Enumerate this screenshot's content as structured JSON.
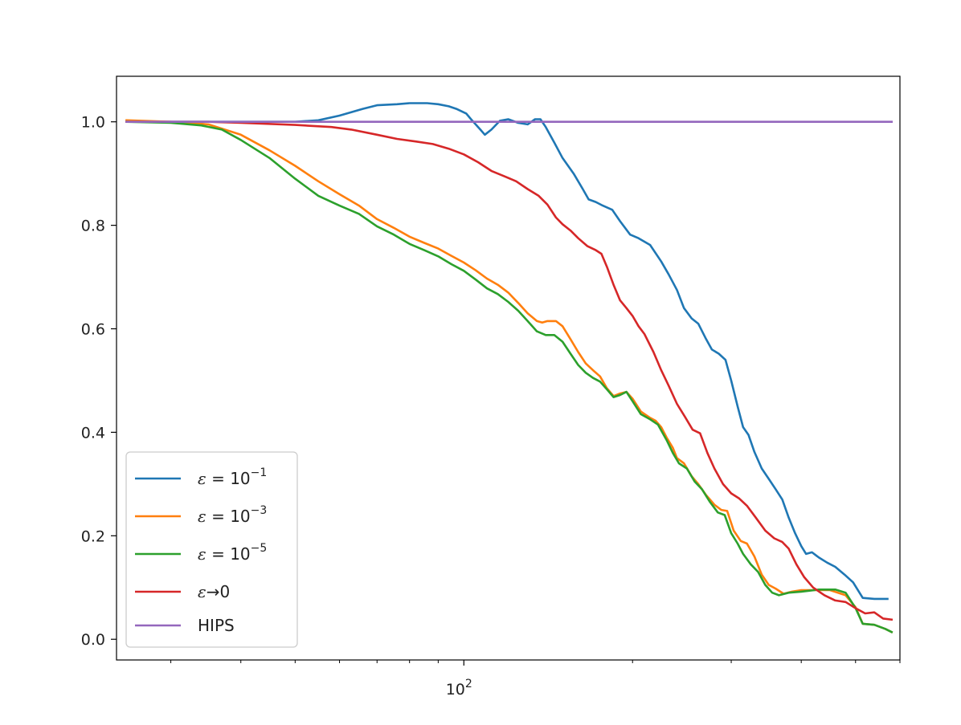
{
  "chart_data": {
    "type": "line",
    "xscale": "log",
    "xlim": [
      24,
      600
    ],
    "ylim": [
      -0.04,
      1.088
    ],
    "x_major_ticks": [
      100
    ],
    "x_minor_ticks": [
      30,
      40,
      50,
      60,
      70,
      80,
      90,
      200,
      300,
      400,
      500,
      600
    ],
    "y_ticks": [
      "0.0",
      "0.2",
      "0.4",
      "0.6",
      "0.8",
      "1.0"
    ],
    "legend_position": "lower-left",
    "series": [
      {
        "name_prefix": "ε",
        "name_suffix": " = 10",
        "name_exp": "−1",
        "color": "#1f77b4",
        "points": [
          [
            25,
            1.0
          ],
          [
            30,
            1.0
          ],
          [
            40,
            1.0
          ],
          [
            50,
            1.0
          ],
          [
            55,
            1.003
          ],
          [
            60,
            1.012
          ],
          [
            66,
            1.025
          ],
          [
            70,
            1.032
          ],
          [
            76,
            1.034
          ],
          [
            80,
            1.036
          ],
          [
            86,
            1.036
          ],
          [
            90,
            1.034
          ],
          [
            94,
            1.03
          ],
          [
            97,
            1.025
          ],
          [
            101,
            1.016
          ],
          [
            103,
            1.005
          ],
          [
            107,
            0.985
          ],
          [
            109,
            0.975
          ],
          [
            112,
            0.985
          ],
          [
            116,
            1.002
          ],
          [
            120,
            1.005
          ],
          [
            125,
            0.998
          ],
          [
            130,
            0.995
          ],
          [
            134,
            1.005
          ],
          [
            137,
            1.005
          ],
          [
            140,
            0.99
          ],
          [
            145,
            0.96
          ],
          [
            150,
            0.93
          ],
          [
            157,
            0.9
          ],
          [
            163,
            0.87
          ],
          [
            167,
            0.85
          ],
          [
            172,
            0.845
          ],
          [
            177,
            0.838
          ],
          [
            184,
            0.83
          ],
          [
            190,
            0.808
          ],
          [
            198,
            0.782
          ],
          [
            205,
            0.775
          ],
          [
            215,
            0.762
          ],
          [
            225,
            0.73
          ],
          [
            232,
            0.705
          ],
          [
            240,
            0.675
          ],
          [
            247,
            0.64
          ],
          [
            255,
            0.62
          ],
          [
            262,
            0.61
          ],
          [
            270,
            0.582
          ],
          [
            277,
            0.56
          ],
          [
            285,
            0.552
          ],
          [
            293,
            0.54
          ],
          [
            300,
            0.5
          ],
          [
            308,
            0.45
          ],
          [
            315,
            0.41
          ],
          [
            322,
            0.395
          ],
          [
            330,
            0.362
          ],
          [
            340,
            0.33
          ],
          [
            350,
            0.31
          ],
          [
            360,
            0.29
          ],
          [
            370,
            0.27
          ],
          [
            380,
            0.235
          ],
          [
            390,
            0.205
          ],
          [
            400,
            0.18
          ],
          [
            408,
            0.165
          ],
          [
            418,
            0.168
          ],
          [
            430,
            0.158
          ],
          [
            445,
            0.148
          ],
          [
            460,
            0.14
          ],
          [
            478,
            0.125
          ],
          [
            495,
            0.11
          ],
          [
            515,
            0.08
          ],
          [
            540,
            0.078
          ],
          [
            570,
            0.078
          ]
        ]
      },
      {
        "name_prefix": "ε",
        "name_suffix": " = 10",
        "name_exp": "−3",
        "color": "#ff7f0e",
        "points": [
          [
            25,
            1.003
          ],
          [
            30,
            1.0
          ],
          [
            35,
            0.995
          ],
          [
            40,
            0.975
          ],
          [
            45,
            0.945
          ],
          [
            50,
            0.915
          ],
          [
            55,
            0.885
          ],
          [
            60,
            0.86
          ],
          [
            65,
            0.838
          ],
          [
            70,
            0.812
          ],
          [
            75,
            0.795
          ],
          [
            80,
            0.778
          ],
          [
            85,
            0.766
          ],
          [
            90,
            0.755
          ],
          [
            95,
            0.741
          ],
          [
            100,
            0.728
          ],
          [
            105,
            0.713
          ],
          [
            110,
            0.697
          ],
          [
            115,
            0.685
          ],
          [
            120,
            0.67
          ],
          [
            125,
            0.65
          ],
          [
            130,
            0.63
          ],
          [
            135,
            0.615
          ],
          [
            138,
            0.612
          ],
          [
            141,
            0.615
          ],
          [
            146,
            0.615
          ],
          [
            150,
            0.605
          ],
          [
            155,
            0.58
          ],
          [
            160,
            0.555
          ],
          [
            165,
            0.533
          ],
          [
            170,
            0.52
          ],
          [
            175,
            0.508
          ],
          [
            180,
            0.485
          ],
          [
            185,
            0.47
          ],
          [
            190,
            0.475
          ],
          [
            195,
            0.478
          ],
          [
            200,
            0.465
          ],
          [
            207,
            0.44
          ],
          [
            215,
            0.428
          ],
          [
            220,
            0.422
          ],
          [
            225,
            0.41
          ],
          [
            230,
            0.39
          ],
          [
            236,
            0.37
          ],
          [
            240,
            0.35
          ],
          [
            247,
            0.34
          ],
          [
            255,
            0.315
          ],
          [
            262,
            0.3
          ],
          [
            270,
            0.28
          ],
          [
            280,
            0.26
          ],
          [
            288,
            0.25
          ],
          [
            295,
            0.248
          ],
          [
            303,
            0.21
          ],
          [
            312,
            0.19
          ],
          [
            320,
            0.185
          ],
          [
            330,
            0.16
          ],
          [
            340,
            0.125
          ],
          [
            350,
            0.105
          ],
          [
            360,
            0.098
          ],
          [
            372,
            0.088
          ],
          [
            385,
            0.092
          ],
          [
            400,
            0.095
          ],
          [
            420,
            0.095
          ],
          [
            450,
            0.095
          ],
          [
            480,
            0.085
          ],
          [
            500,
            0.062
          ],
          [
            515,
            0.03
          ],
          [
            540,
            0.028
          ],
          [
            565,
            0.02
          ],
          [
            580,
            0.014
          ]
        ]
      },
      {
        "name_prefix": "ε",
        "name_suffix": " = 10",
        "name_exp": "−5",
        "color": "#2ca02c",
        "points": [
          [
            25,
            1.0
          ],
          [
            30,
            0.998
          ],
          [
            34,
            0.993
          ],
          [
            37,
            0.985
          ],
          [
            40,
            0.965
          ],
          [
            45,
            0.93
          ],
          [
            50,
            0.89
          ],
          [
            55,
            0.857
          ],
          [
            60,
            0.838
          ],
          [
            65,
            0.822
          ],
          [
            70,
            0.798
          ],
          [
            75,
            0.782
          ],
          [
            80,
            0.764
          ],
          [
            85,
            0.752
          ],
          [
            90,
            0.74
          ],
          [
            95,
            0.725
          ],
          [
            100,
            0.712
          ],
          [
            105,
            0.695
          ],
          [
            110,
            0.678
          ],
          [
            115,
            0.667
          ],
          [
            120,
            0.652
          ],
          [
            125,
            0.635
          ],
          [
            130,
            0.615
          ],
          [
            135,
            0.595
          ],
          [
            140,
            0.588
          ],
          [
            145,
            0.588
          ],
          [
            150,
            0.575
          ],
          [
            155,
            0.552
          ],
          [
            160,
            0.53
          ],
          [
            165,
            0.515
          ],
          [
            170,
            0.505
          ],
          [
            175,
            0.498
          ],
          [
            180,
            0.483
          ],
          [
            185,
            0.468
          ],
          [
            190,
            0.472
          ],
          [
            195,
            0.478
          ],
          [
            200,
            0.46
          ],
          [
            207,
            0.435
          ],
          [
            215,
            0.425
          ],
          [
            222,
            0.415
          ],
          [
            230,
            0.385
          ],
          [
            236,
            0.36
          ],
          [
            242,
            0.34
          ],
          [
            250,
            0.33
          ],
          [
            258,
            0.305
          ],
          [
            266,
            0.29
          ],
          [
            275,
            0.265
          ],
          [
            284,
            0.245
          ],
          [
            292,
            0.24
          ],
          [
            300,
            0.205
          ],
          [
            308,
            0.185
          ],
          [
            315,
            0.165
          ],
          [
            325,
            0.145
          ],
          [
            335,
            0.13
          ],
          [
            345,
            0.105
          ],
          [
            355,
            0.09
          ],
          [
            365,
            0.085
          ],
          [
            380,
            0.09
          ],
          [
            400,
            0.092
          ],
          [
            430,
            0.096
          ],
          [
            460,
            0.096
          ],
          [
            480,
            0.09
          ],
          [
            500,
            0.06
          ],
          [
            515,
            0.03
          ],
          [
            540,
            0.028
          ],
          [
            565,
            0.02
          ],
          [
            580,
            0.014
          ]
        ]
      },
      {
        "name_prefix": "ε",
        "name_suffix": "→0",
        "name_exp": "",
        "color": "#d62728",
        "points": [
          [
            25,
            1.0
          ],
          [
            35,
            1.0
          ],
          [
            40,
            0.998
          ],
          [
            50,
            0.994
          ],
          [
            58,
            0.99
          ],
          [
            63,
            0.985
          ],
          [
            70,
            0.975
          ],
          [
            76,
            0.967
          ],
          [
            82,
            0.962
          ],
          [
            88,
            0.957
          ],
          [
            94,
            0.948
          ],
          [
            100,
            0.937
          ],
          [
            106,
            0.922
          ],
          [
            112,
            0.905
          ],
          [
            118,
            0.895
          ],
          [
            124,
            0.885
          ],
          [
            130,
            0.87
          ],
          [
            136,
            0.857
          ],
          [
            141,
            0.84
          ],
          [
            146,
            0.815
          ],
          [
            150,
            0.802
          ],
          [
            155,
            0.79
          ],
          [
            160,
            0.775
          ],
          [
            166,
            0.76
          ],
          [
            172,
            0.752
          ],
          [
            176,
            0.745
          ],
          [
            180,
            0.72
          ],
          [
            185,
            0.685
          ],
          [
            190,
            0.655
          ],
          [
            195,
            0.64
          ],
          [
            200,
            0.625
          ],
          [
            205,
            0.605
          ],
          [
            210,
            0.59
          ],
          [
            218,
            0.555
          ],
          [
            225,
            0.52
          ],
          [
            232,
            0.49
          ],
          [
            240,
            0.455
          ],
          [
            248,
            0.43
          ],
          [
            256,
            0.405
          ],
          [
            264,
            0.398
          ],
          [
            272,
            0.36
          ],
          [
            280,
            0.33
          ],
          [
            290,
            0.3
          ],
          [
            300,
            0.282
          ],
          [
            310,
            0.272
          ],
          [
            320,
            0.258
          ],
          [
            332,
            0.235
          ],
          [
            345,
            0.21
          ],
          [
            358,
            0.195
          ],
          [
            370,
            0.188
          ],
          [
            380,
            0.175
          ],
          [
            392,
            0.145
          ],
          [
            405,
            0.12
          ],
          [
            420,
            0.1
          ],
          [
            440,
            0.085
          ],
          [
            460,
            0.075
          ],
          [
            480,
            0.072
          ],
          [
            500,
            0.06
          ],
          [
            520,
            0.05
          ],
          [
            540,
            0.052
          ],
          [
            560,
            0.04
          ],
          [
            580,
            0.038
          ]
        ]
      },
      {
        "name_prefix": "",
        "name_suffix": "HIPS",
        "name_exp": "",
        "color": "#9467bd",
        "points": [
          [
            25,
            1.0
          ],
          [
            580,
            1.0
          ]
        ]
      }
    ]
  }
}
